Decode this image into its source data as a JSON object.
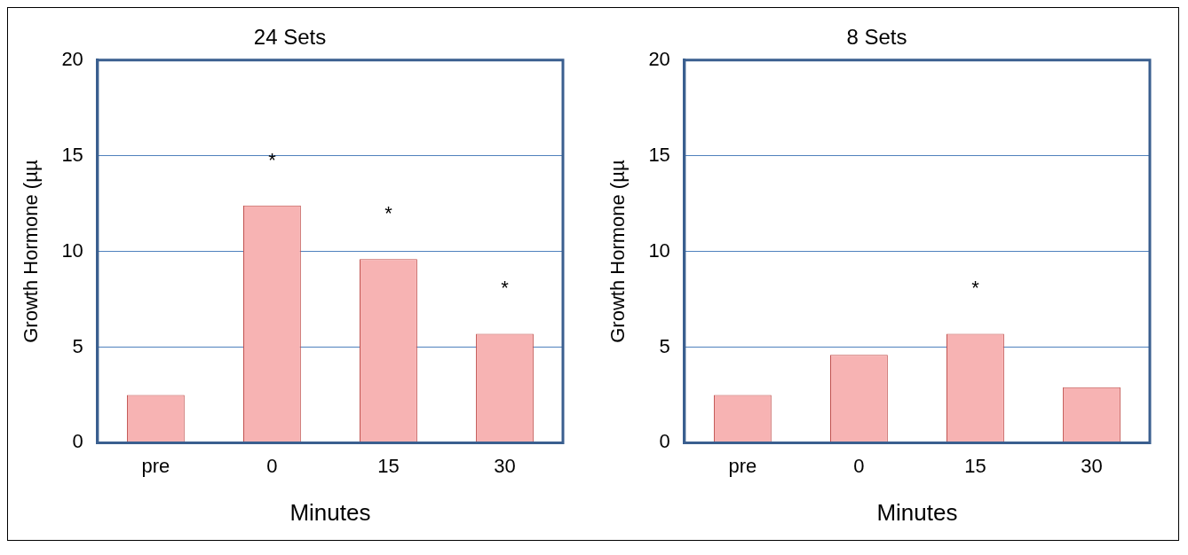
{
  "chart_data": [
    {
      "type": "bar",
      "title": "24 Sets",
      "xlabel": "Minutes",
      "ylabel": "Growth Hormone (µµ",
      "categories": [
        "pre",
        "0",
        "15",
        "30"
      ],
      "values": [
        2.5,
        12.4,
        9.6,
        5.7
      ],
      "color": "#f7b3b3",
      "ylim": [
        0,
        20
      ],
      "yticks": [
        0,
        5,
        10,
        15,
        20
      ],
      "grid": "y",
      "legend": false,
      "annotations": [
        {
          "text": "*",
          "x": "0",
          "y": 12.4
        },
        {
          "text": "*",
          "x": "15",
          "y": 9.6
        },
        {
          "text": "*",
          "x": "30",
          "y": 5.7
        }
      ]
    },
    {
      "type": "bar",
      "title": "8 Sets",
      "xlabel": "Minutes",
      "ylabel": "Growth Hormone (µµ",
      "categories": [
        "pre",
        "0",
        "15",
        "30"
      ],
      "values": [
        2.5,
        4.6,
        5.7,
        2.9
      ],
      "color": "#f7b3b3",
      "ylim": [
        0,
        20
      ],
      "yticks": [
        0,
        5,
        10,
        15,
        20
      ],
      "grid": "y",
      "legend": false,
      "annotations": [
        {
          "text": "*",
          "x": "15",
          "y": 5.7
        }
      ]
    }
  ]
}
